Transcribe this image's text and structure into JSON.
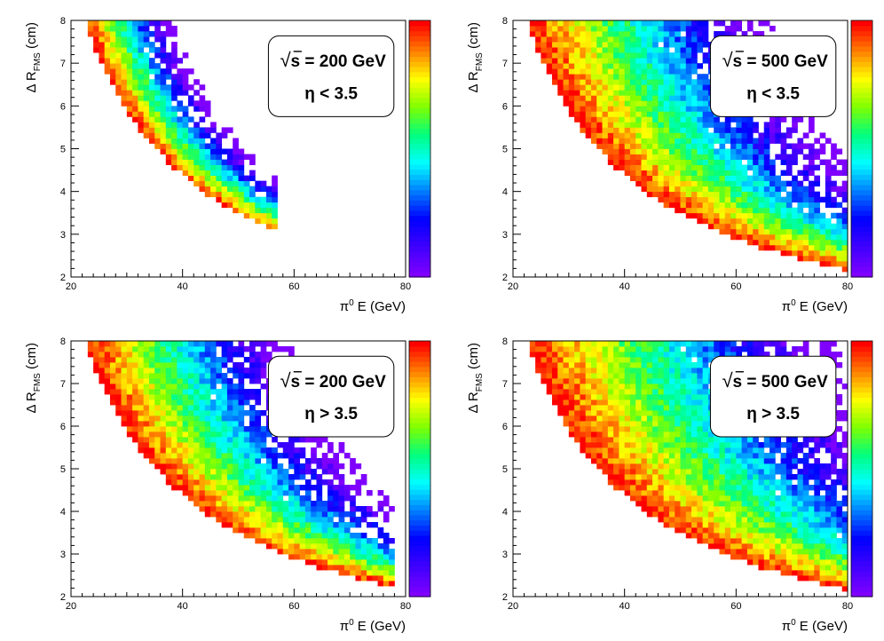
{
  "figure": {
    "colors": {
      "palette": [
        "#7f00ff",
        "#3f00ff",
        "#0000ff",
        "#007fff",
        "#00ffff",
        "#00ff7f",
        "#7fff00",
        "#ffff00",
        "#ff7f00",
        "#ff0000"
      ]
    }
  },
  "chart_data": [
    {
      "type": "heatmap",
      "title": "",
      "xlabel": "π0 E (GeV)",
      "ylabel": "Δ RFMS (cm)",
      "xlim": [
        20,
        80
      ],
      "ylim": [
        2,
        8
      ],
      "xticks": [
        "20",
        "40",
        "60",
        "80"
      ],
      "yticks": [
        "2",
        "3",
        "4",
        "5",
        "6",
        "7",
        "8"
      ],
      "annotation": {
        "line1": "s = 200 GeV",
        "line2": "η < 3.5",
        "sqrt_symbol": "√"
      },
      "curve_ER_const": 170,
      "band_width_GeV": 14,
      "max_energy_GeV": 57,
      "legend": "colorbar-right",
      "grid": false
    },
    {
      "type": "heatmap",
      "title": "",
      "xlabel": "π0 E (GeV)",
      "ylabel": "Δ RFMS (cm)",
      "xlim": [
        20,
        80
      ],
      "ylim": [
        2,
        8
      ],
      "xticks": [
        "20",
        "40",
        "60",
        "80"
      ],
      "yticks": [
        "2",
        "3",
        "4",
        "5",
        "6",
        "7",
        "8"
      ],
      "annotation": {
        "line1": "s = 500 GeV",
        "line2": "η < 3.5",
        "sqrt_symbol": "√"
      },
      "curve_ER_const": 170,
      "band_width_GeV": 38,
      "max_energy_GeV": 80,
      "legend": "colorbar-right",
      "grid": false
    },
    {
      "type": "heatmap",
      "title": "",
      "xlabel": "π0 E (GeV)",
      "ylabel": "Δ RFMS (cm)",
      "xlim": [
        20,
        80
      ],
      "ylim": [
        2,
        8
      ],
      "xticks": [
        "20",
        "40",
        "60",
        "80"
      ],
      "yticks": [
        "2",
        "3",
        "4",
        "5",
        "6",
        "7",
        "8"
      ],
      "annotation": {
        "line1": "s = 200 GeV",
        "line2": "η > 3.5",
        "sqrt_symbol": "√"
      },
      "curve_ER_const": 170,
      "band_width_GeV": 32,
      "max_energy_GeV": 78,
      "legend": "colorbar-right",
      "grid": false
    },
    {
      "type": "heatmap",
      "title": "",
      "xlabel": "π0 E (GeV)",
      "ylabel": "Δ RFMS (cm)",
      "xlim": [
        20,
        80
      ],
      "ylim": [
        2,
        8
      ],
      "xticks": [
        "20",
        "40",
        "60",
        "80"
      ],
      "yticks": [
        "2",
        "3",
        "4",
        "5",
        "6",
        "7",
        "8"
      ],
      "annotation": {
        "line1": "s = 500 GeV",
        "line2": "η > 3.5",
        "sqrt_symbol": "√"
      },
      "curve_ER_const": 170,
      "band_width_GeV": 48,
      "max_energy_GeV": 80,
      "legend": "colorbar-right",
      "grid": false
    }
  ]
}
